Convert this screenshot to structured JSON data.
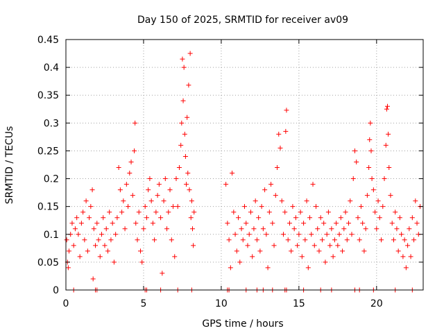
{
  "chart_data": {
    "type": "scatter",
    "title": "Day 150 of 2025, SRMTID for receiver av09",
    "xlabel": "GPS time / hours",
    "ylabel": "SRMTID / TECUs",
    "xlim": [
      0,
      23
    ],
    "ylim": [
      0,
      0.45
    ],
    "x_ticks": [
      0,
      5,
      10,
      15,
      20
    ],
    "x_tick_labels": [
      "0",
      "5",
      "10",
      "15",
      "20"
    ],
    "y_ticks": [
      0,
      0.05,
      0.1,
      0.15,
      0.2,
      0.25,
      0.3,
      0.35,
      0.4,
      0.45
    ],
    "y_tick_labels": [
      "0",
      "0.05",
      "0.1",
      "0.15",
      "0.2",
      "0.25",
      "0.3",
      "0.35",
      "0.4",
      "0.45"
    ],
    "grid": true,
    "marker": "+",
    "marker_color": "#ff0000",
    "series": [
      {
        "name": "SRMTID",
        "points": [
          [
            0.05,
            0.09
          ],
          [
            0.1,
            0.05
          ],
          [
            0.15,
            0.04
          ],
          [
            0.2,
            0.07
          ],
          [
            0.3,
            0.1
          ],
          [
            0.4,
            0.12
          ],
          [
            0.5,
            0.08
          ],
          [
            0.6,
            0.11
          ],
          [
            0.7,
            0.13
          ],
          [
            0.8,
            0.1
          ],
          [
            0.9,
            0.06
          ],
          [
            1.0,
            0.12
          ],
          [
            1.1,
            0.14
          ],
          [
            1.2,
            0.09
          ],
          [
            1.3,
            0.16
          ],
          [
            1.4,
            0.07
          ],
          [
            1.5,
            0.13
          ],
          [
            1.6,
            0.15
          ],
          [
            1.7,
            0.18
          ],
          [
            1.75,
            0.02
          ],
          [
            1.8,
            0.11
          ],
          [
            1.9,
            0.08
          ],
          [
            2.0,
            0.12
          ],
          [
            2.1,
            0.09
          ],
          [
            2.2,
            0.06
          ],
          [
            2.3,
            0.1
          ],
          [
            2.4,
            0.13
          ],
          [
            2.5,
            0.08
          ],
          [
            2.6,
            0.11
          ],
          [
            2.7,
            0.07
          ],
          [
            2.8,
            0.14
          ],
          [
            2.9,
            0.09
          ],
          [
            3.0,
            0.12
          ],
          [
            3.1,
            0.05
          ],
          [
            3.2,
            0.1
          ],
          [
            3.3,
            0.13
          ],
          [
            3.4,
            0.22
          ],
          [
            3.5,
            0.18
          ],
          [
            3.6,
            0.14
          ],
          [
            3.7,
            0.16
          ],
          [
            3.8,
            0.11
          ],
          [
            3.9,
            0.19
          ],
          [
            4.0,
            0.15
          ],
          [
            4.1,
            0.21
          ],
          [
            4.2,
            0.23
          ],
          [
            4.3,
            0.17
          ],
          [
            4.4,
            0.25
          ],
          [
            4.45,
            0.3
          ],
          [
            4.5,
            0.12
          ],
          [
            4.6,
            0.09
          ],
          [
            4.7,
            0.14
          ],
          [
            4.8,
            0.07
          ],
          [
            4.9,
            0.05
          ],
          [
            5.0,
            0.11
          ],
          [
            5.1,
            0.15
          ],
          [
            5.2,
            0.13
          ],
          [
            5.3,
            0.18
          ],
          [
            5.4,
            0.2
          ],
          [
            5.5,
            0.16
          ],
          [
            5.6,
            0.12
          ],
          [
            5.7,
            0.09
          ],
          [
            5.8,
            0.14
          ],
          [
            5.9,
            0.17
          ],
          [
            6.0,
            0.19
          ],
          [
            6.1,
            0.13
          ],
          [
            6.2,
            0.03
          ],
          [
            6.3,
            0.16
          ],
          [
            6.4,
            0.2
          ],
          [
            6.5,
            0.11
          ],
          [
            6.6,
            0.14
          ],
          [
            6.7,
            0.18
          ],
          [
            6.8,
            0.09
          ],
          [
            6.9,
            0.15
          ],
          [
            7.0,
            0.06
          ],
          [
            7.1,
            0.2
          ],
          [
            7.2,
            0.15
          ],
          [
            7.3,
            0.22
          ],
          [
            7.4,
            0.26
          ],
          [
            7.45,
            0.3
          ],
          [
            7.5,
            0.415
          ],
          [
            7.55,
            0.34
          ],
          [
            7.6,
            0.4
          ],
          [
            7.65,
            0.28
          ],
          [
            7.7,
            0.24
          ],
          [
            7.75,
            0.19
          ],
          [
            7.8,
            0.31
          ],
          [
            7.85,
            0.21
          ],
          [
            7.9,
            0.368
          ],
          [
            7.95,
            0.18
          ],
          [
            8.0,
            0.425
          ],
          [
            8.05,
            0.13
          ],
          [
            8.1,
            0.16
          ],
          [
            8.15,
            0.11
          ],
          [
            8.2,
            0.08
          ],
          [
            8.25,
            0.14
          ],
          [
            10.3,
            0.19
          ],
          [
            10.4,
            0.12
          ],
          [
            10.5,
            0.09
          ],
          [
            10.6,
            0.04
          ],
          [
            10.7,
            0.21
          ],
          [
            10.8,
            0.14
          ],
          [
            10.9,
            0.1
          ],
          [
            11.0,
            0.07
          ],
          [
            11.1,
            0.13
          ],
          [
            11.2,
            0.05
          ],
          [
            11.3,
            0.11
          ],
          [
            11.4,
            0.09
          ],
          [
            11.5,
            0.15
          ],
          [
            11.6,
            0.12
          ],
          [
            11.7,
            0.08
          ],
          [
            11.8,
            0.1
          ],
          [
            11.9,
            0.14
          ],
          [
            12.0,
            0.06
          ],
          [
            12.1,
            0.11
          ],
          [
            12.2,
            0.16
          ],
          [
            12.3,
            0.09
          ],
          [
            12.4,
            0.13
          ],
          [
            12.5,
            0.07
          ],
          [
            12.6,
            0.15
          ],
          [
            12.7,
            0.11
          ],
          [
            12.8,
            0.18
          ],
          [
            12.9,
            0.1
          ],
          [
            13.0,
            0.04
          ],
          [
            13.1,
            0.14
          ],
          [
            13.2,
            0.19
          ],
          [
            13.3,
            0.12
          ],
          [
            13.4,
            0.08
          ],
          [
            13.5,
            0.17
          ],
          [
            13.6,
            0.22
          ],
          [
            13.7,
            0.28
          ],
          [
            13.8,
            0.255
          ],
          [
            13.9,
            0.16
          ],
          [
            14.0,
            0.1
          ],
          [
            14.1,
            0.14
          ],
          [
            14.15,
            0.285
          ],
          [
            14.2,
            0.323
          ],
          [
            14.3,
            0.09
          ],
          [
            14.4,
            0.12
          ],
          [
            14.5,
            0.07
          ],
          [
            14.6,
            0.15
          ],
          [
            14.7,
            0.11
          ],
          [
            14.8,
            0.13
          ],
          [
            14.9,
            0.08
          ],
          [
            15.0,
            0.1
          ],
          [
            15.1,
            0.14
          ],
          [
            15.2,
            0.06
          ],
          [
            15.3,
            0.12
          ],
          [
            15.4,
            0.09
          ],
          [
            15.5,
            0.16
          ],
          [
            15.6,
            0.04
          ],
          [
            15.7,
            0.13
          ],
          [
            15.8,
            0.1
          ],
          [
            15.9,
            0.19
          ],
          [
            16.0,
            0.08
          ],
          [
            16.1,
            0.15
          ],
          [
            16.2,
            0.11
          ],
          [
            16.3,
            0.07
          ],
          [
            16.4,
            0.13
          ],
          [
            16.5,
            0.09
          ],
          [
            16.6,
            0.12
          ],
          [
            16.7,
            0.05
          ],
          [
            16.8,
            0.1
          ],
          [
            16.9,
            0.14
          ],
          [
            17.0,
            0.08
          ],
          [
            17.1,
            0.11
          ],
          [
            17.2,
            0.06
          ],
          [
            17.3,
            0.09
          ],
          [
            17.4,
            0.12
          ],
          [
            17.5,
            0.08
          ],
          [
            17.6,
            0.1
          ],
          [
            17.7,
            0.13
          ],
          [
            17.8,
            0.07
          ],
          [
            17.9,
            0.11
          ],
          [
            18.0,
            0.14
          ],
          [
            18.1,
            0.09
          ],
          [
            18.2,
            0.12
          ],
          [
            18.3,
            0.16
          ],
          [
            18.4,
            0.1
          ],
          [
            18.5,
            0.2
          ],
          [
            18.6,
            0.25
          ],
          [
            18.7,
            0.23
          ],
          [
            18.8,
            0.13
          ],
          [
            18.9,
            0.09
          ],
          [
            19.0,
            0.15
          ],
          [
            19.1,
            0.12
          ],
          [
            19.2,
            0.07
          ],
          [
            19.3,
            0.11
          ],
          [
            19.4,
            0.17
          ],
          [
            19.5,
            0.22
          ],
          [
            19.55,
            0.27
          ],
          [
            19.6,
            0.3
          ],
          [
            19.65,
            0.25
          ],
          [
            19.7,
            0.2
          ],
          [
            19.8,
            0.18
          ],
          [
            19.9,
            0.14
          ],
          [
            20.0,
            0.11
          ],
          [
            20.1,
            0.16
          ],
          [
            20.2,
            0.13
          ],
          [
            20.3,
            0.09
          ],
          [
            20.4,
            0.15
          ],
          [
            20.5,
            0.2
          ],
          [
            20.6,
            0.26
          ],
          [
            20.65,
            0.325
          ],
          [
            20.7,
            0.33
          ],
          [
            20.75,
            0.28
          ],
          [
            20.8,
            0.22
          ],
          [
            20.9,
            0.17
          ],
          [
            21.0,
            0.12
          ],
          [
            21.1,
            0.09
          ],
          [
            21.2,
            0.14
          ],
          [
            21.3,
            0.11
          ],
          [
            21.4,
            0.07
          ],
          [
            21.5,
            0.13
          ],
          [
            21.6,
            0.1
          ],
          [
            21.7,
            0.06
          ],
          [
            21.8,
            0.09
          ],
          [
            21.9,
            0.04
          ],
          [
            22.0,
            0.08
          ],
          [
            22.1,
            0.11
          ],
          [
            22.2,
            0.06
          ],
          [
            22.3,
            0.13
          ],
          [
            22.4,
            0.09
          ],
          [
            22.5,
            0.16
          ],
          [
            22.6,
            0.12
          ],
          [
            22.7,
            0.1
          ],
          [
            22.8,
            0.15
          ]
        ]
      }
    ],
    "zero_line_markers_x": [
      0.5,
      1.9,
      2.0,
      5.1,
      5.2,
      6.1,
      7.2,
      8.1,
      10.4,
      10.5,
      11.6,
      12.3,
      12.7,
      13.3,
      14.1,
      14.2,
      15.3,
      16.4,
      17.1,
      18.6,
      18.9,
      19.8,
      21.2,
      22.3
    ]
  }
}
